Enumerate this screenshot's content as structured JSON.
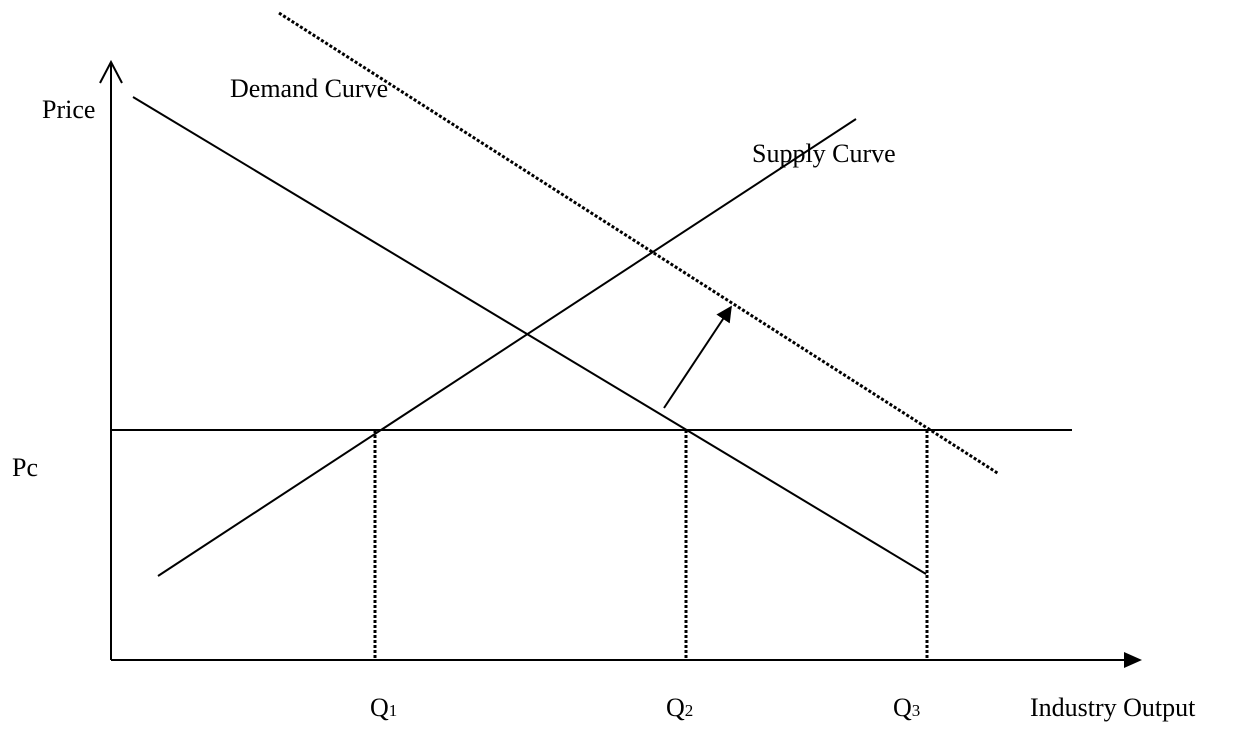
{
  "axes": {
    "y_label": "Price",
    "x_label": "Industry Output",
    "price_label": "Pc"
  },
  "curves": {
    "demand": "Demand Curve",
    "supply": "Supply Curve"
  },
  "quantities": [
    {
      "letter": "Q",
      "sub": "1"
    },
    {
      "letter": "Q",
      "sub": "2"
    },
    {
      "letter": "Q",
      "sub": "3"
    }
  ]
}
